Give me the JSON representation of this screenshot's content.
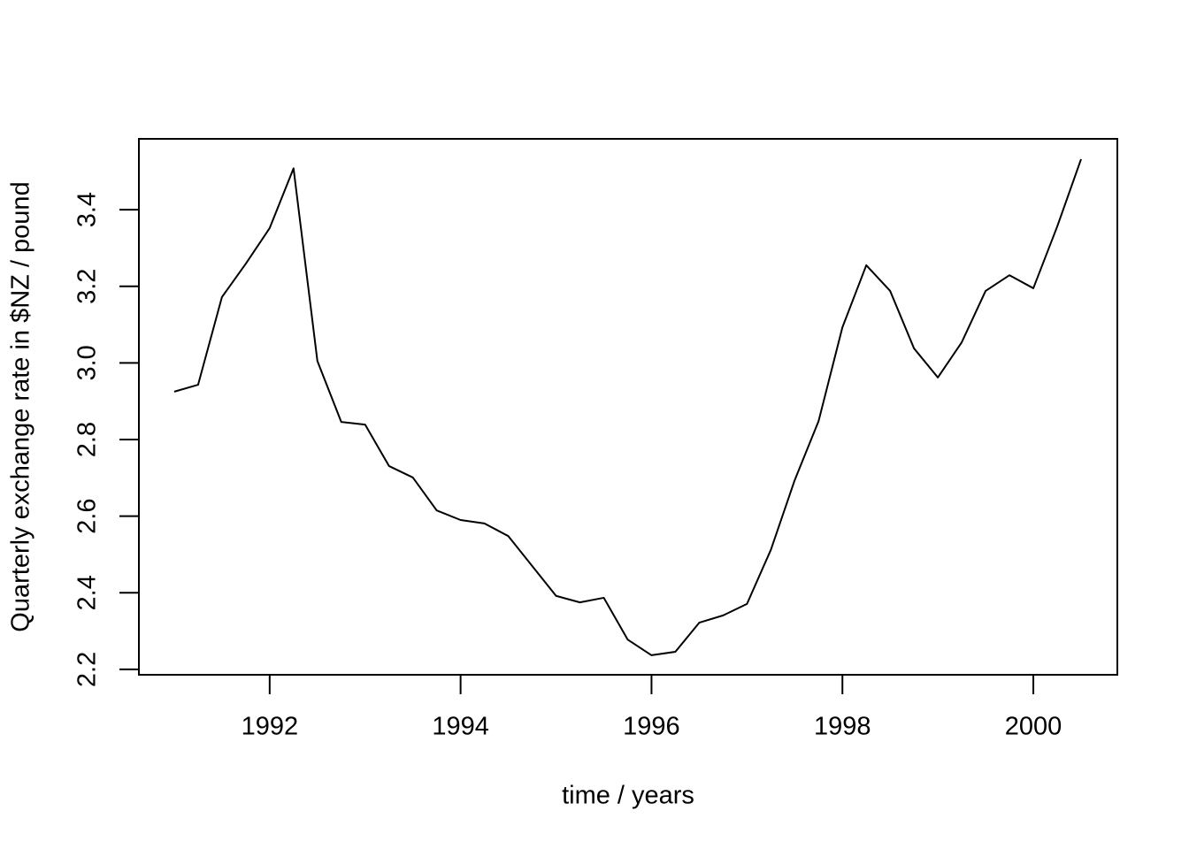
{
  "chart_data": {
    "type": "line",
    "x_label": "time / years",
    "y_label": "Quarterly exchange rate in $NZ / pound",
    "x": [
      1991,
      1991.25,
      1991.5,
      1991.75,
      1992,
      1992.25,
      1992.5,
      1992.75,
      1993,
      1993.25,
      1993.5,
      1993.75,
      1994,
      1994.25,
      1994.5,
      1994.75,
      1995,
      1995.25,
      1995.5,
      1995.75,
      1996,
      1996.25,
      1996.5,
      1996.75,
      1997,
      1997.25,
      1997.5,
      1997.75,
      1998,
      1998.25,
      1998.5,
      1998.75,
      1999,
      1999.25,
      1999.5,
      1999.75,
      2000,
      2000.25,
      2000.5
    ],
    "values": [
      2.925,
      2.943,
      3.172,
      3.259,
      3.352,
      3.508,
      3.005,
      2.846,
      2.839,
      2.731,
      2.701,
      2.615,
      2.59,
      2.581,
      2.548,
      2.47,
      2.392,
      2.375,
      2.387,
      2.278,
      2.237,
      2.246,
      2.322,
      2.341,
      2.371,
      2.512,
      2.694,
      2.848,
      3.093,
      3.255,
      3.188,
      3.038,
      2.962,
      3.054,
      3.188,
      3.229,
      3.195,
      3.356,
      3.532
    ],
    "color": "#000000",
    "xlim": [
      1990.63,
      2000.88
    ],
    "ylim": [
      2.186,
      3.585
    ],
    "xticks": [
      1992,
      1994,
      1996,
      1998,
      2000
    ],
    "yticks": [
      2.2,
      2.4,
      2.6,
      2.8,
      {
        "value": 3,
        "label": "3.0"
      },
      3.2,
      3.4
    ]
  }
}
